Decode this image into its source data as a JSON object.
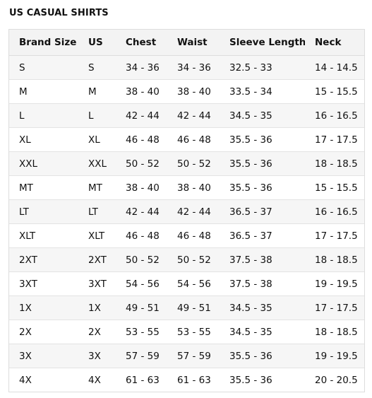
{
  "title": "US CASUAL SHIRTS",
  "table": {
    "headers": [
      "Brand Size",
      "US",
      "Chest",
      "Waist",
      "Sleeve Length",
      "Neck"
    ],
    "rows": [
      [
        "S",
        "S",
        "34 - 36",
        "34 - 36",
        "32.5 - 33",
        "14 - 14.5"
      ],
      [
        "M",
        "M",
        "38 - 40",
        "38 - 40",
        "33.5 - 34",
        "15 - 15.5"
      ],
      [
        "L",
        "L",
        "42 - 44",
        "42 - 44",
        "34.5 - 35",
        "16 - 16.5"
      ],
      [
        "XL",
        "XL",
        "46 - 48",
        "46 - 48",
        "35.5 - 36",
        "17 - 17.5"
      ],
      [
        "XXL",
        "XXL",
        "50 - 52",
        "50 - 52",
        "35.5 - 36",
        "18 - 18.5"
      ],
      [
        "MT",
        "MT",
        "38 - 40",
        "38 - 40",
        "35.5 - 36",
        "15 - 15.5"
      ],
      [
        "LT",
        "LT",
        "42 - 44",
        "42 - 44",
        "36.5 - 37",
        "16 - 16.5"
      ],
      [
        "XLT",
        "XLT",
        "46 - 48",
        "46 - 48",
        "36.5 - 37",
        "17 - 17.5"
      ],
      [
        "2XT",
        "2XT",
        "50 - 52",
        "50 - 52",
        "37.5 - 38",
        "18 - 18.5"
      ],
      [
        "3XT",
        "3XT",
        "54 - 56",
        "54 - 56",
        "37.5 - 38",
        "19 - 19.5"
      ],
      [
        "1X",
        "1X",
        "49 - 51",
        "49 - 51",
        "34.5 - 35",
        "17 - 17.5"
      ],
      [
        "2X",
        "2X",
        "53 - 55",
        "53 - 55",
        "34.5 - 35",
        "18 - 18.5"
      ],
      [
        "3X",
        "3X",
        "57 - 59",
        "57 - 59",
        "35.5 - 36",
        "19 - 19.5"
      ],
      [
        "4X",
        "4X",
        "61 - 63",
        "61 - 63",
        "35.5 - 36",
        "20 - 20.5"
      ]
    ]
  }
}
